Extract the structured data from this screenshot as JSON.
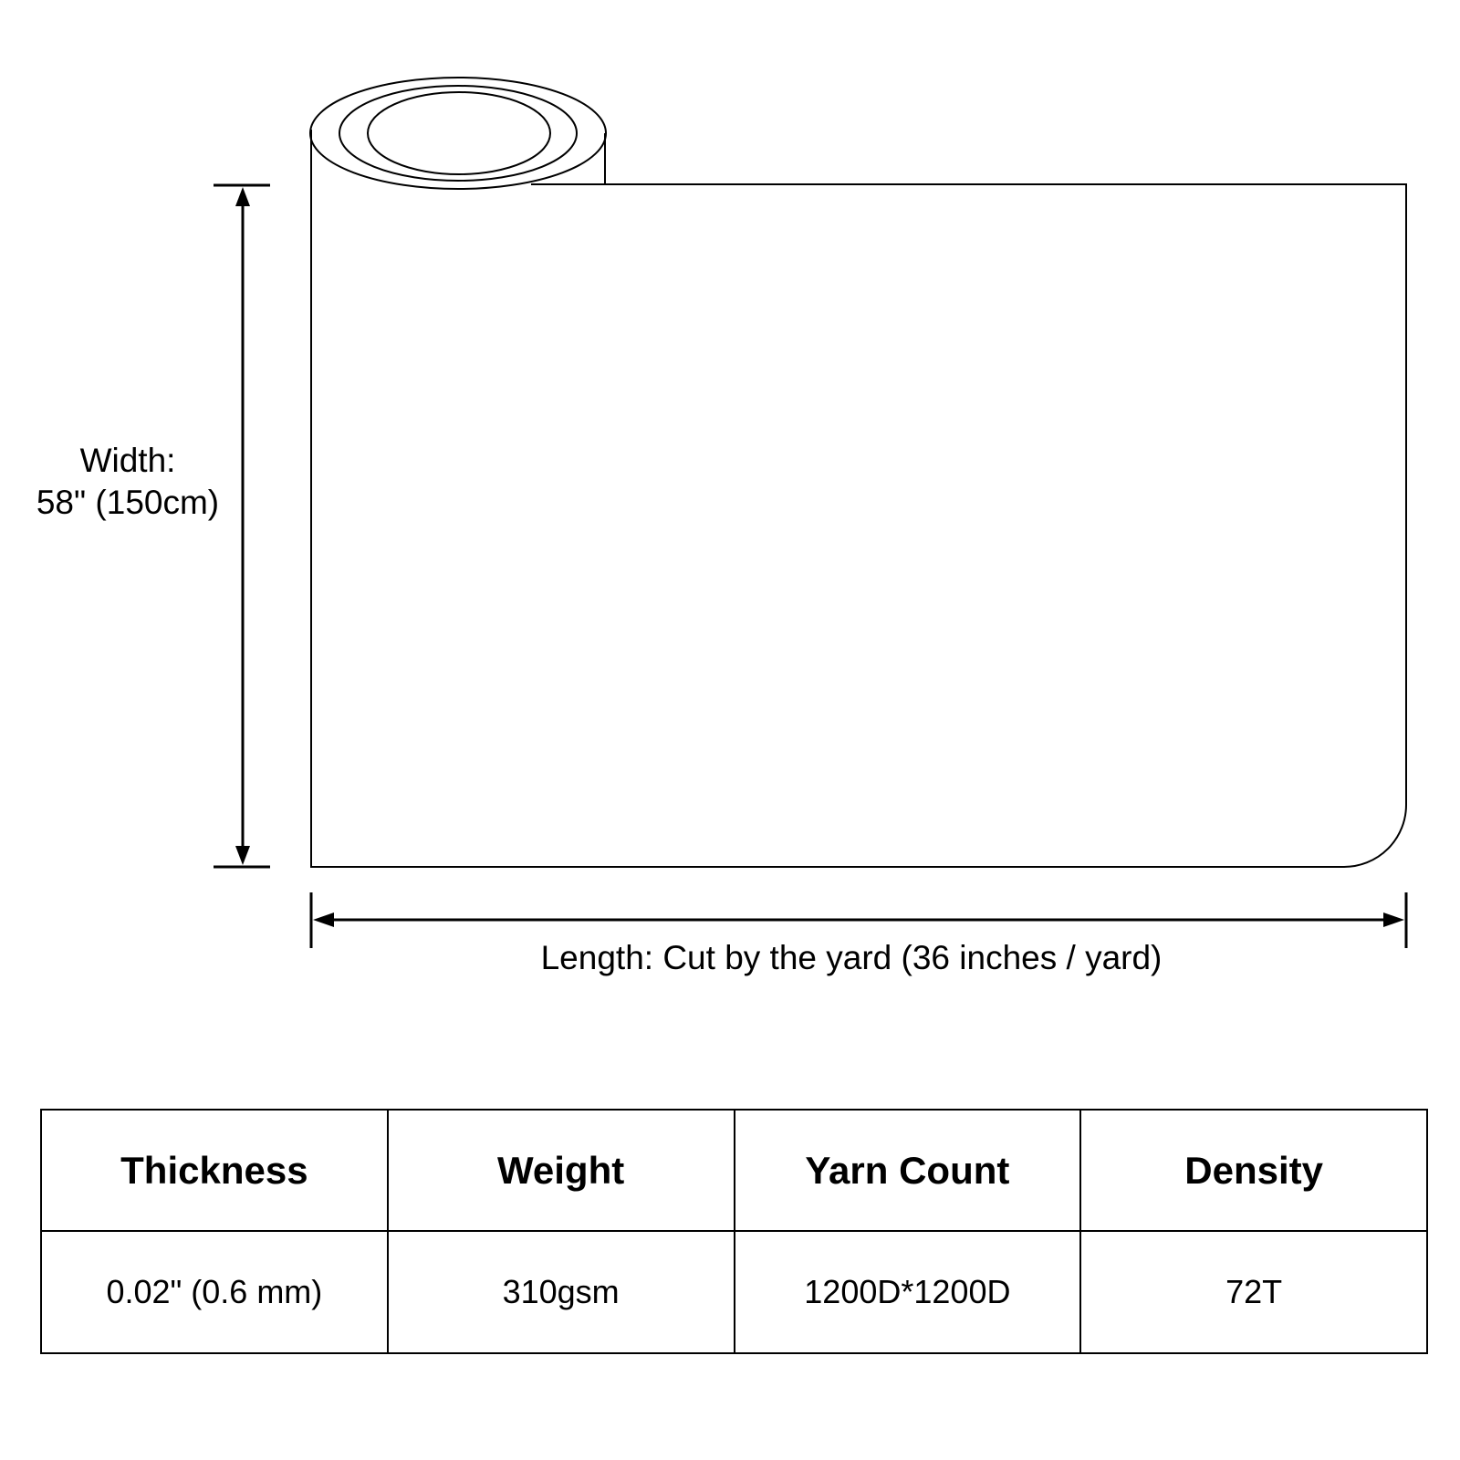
{
  "width_label": {
    "line1": "Width:",
    "line2": "58\" (150cm)"
  },
  "length_label": "Length: Cut by the yard (36 inches / yard)",
  "specs": {
    "headers": [
      "Thickness",
      "Weight",
      "Yarn Count",
      "Density"
    ],
    "values": [
      "0.02\" (0.6 mm)",
      "310gsm",
      "1200D*1200D",
      "72T"
    ]
  }
}
